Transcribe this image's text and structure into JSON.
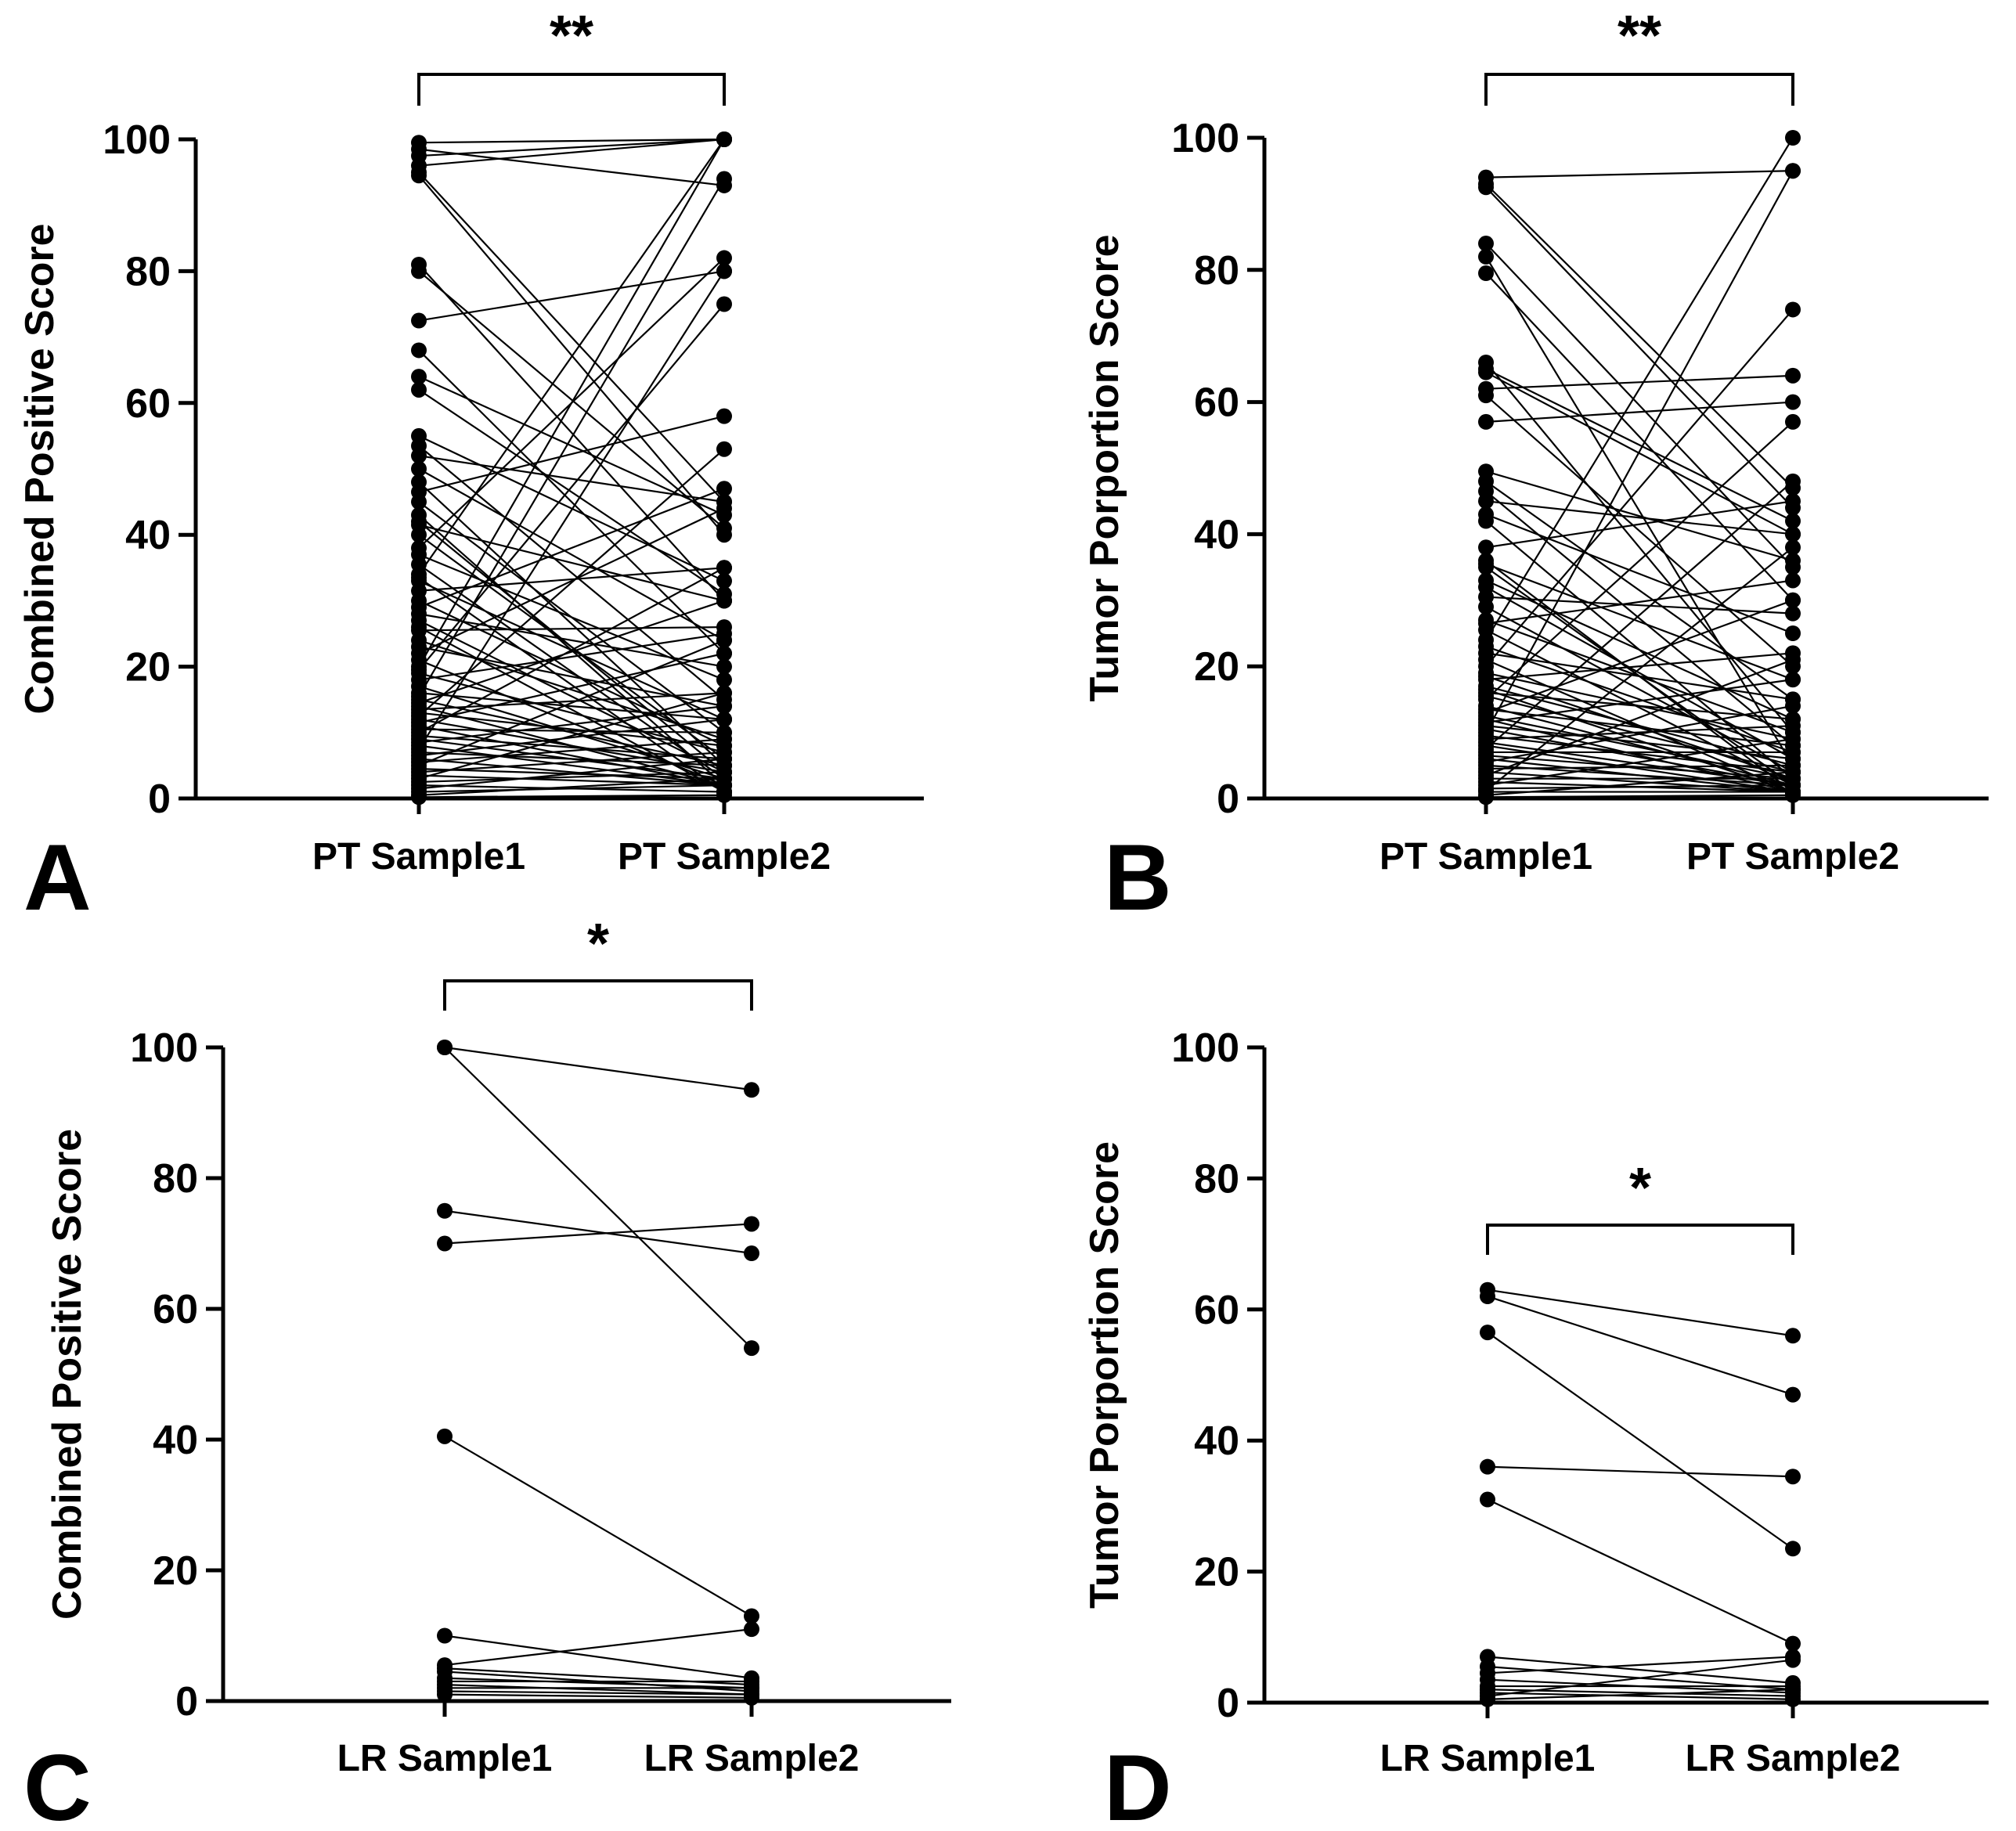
{
  "chart_data": [
    {
      "type": "line",
      "panel_label": "A",
      "ylabel": "Combined Positive Score",
      "categories": [
        "PT Sample1",
        "PT Sample2"
      ],
      "ylim": [
        0,
        100
      ],
      "yticks": [
        0,
        20,
        40,
        60,
        80,
        100
      ],
      "significance": "**",
      "pairs": [
        [
          99.5,
          100
        ],
        [
          98.5,
          93
        ],
        [
          97.5,
          100
        ],
        [
          96,
          100
        ],
        [
          95,
          45
        ],
        [
          94.5,
          40
        ],
        [
          81,
          30
        ],
        [
          80,
          41
        ],
        [
          72.5,
          80
        ],
        [
          68,
          22
        ],
        [
          64,
          43
        ],
        [
          62,
          31
        ],
        [
          55,
          33
        ],
        [
          53.5,
          15
        ],
        [
          52,
          45
        ],
        [
          50,
          24
        ],
        [
          48,
          5
        ],
        [
          46.5,
          58
        ],
        [
          45,
          10
        ],
        [
          43,
          2
        ],
        [
          41.5,
          30
        ],
        [
          40,
          6
        ],
        [
          38,
          82
        ],
        [
          37,
          18
        ],
        [
          35.5,
          3
        ],
        [
          34,
          100
        ],
        [
          33,
          12
        ],
        [
          31.5,
          35
        ],
        [
          30,
          8
        ],
        [
          29,
          47
        ],
        [
          28,
          20
        ],
        [
          27,
          4
        ],
        [
          25.5,
          26
        ],
        [
          24,
          9
        ],
        [
          23,
          14
        ],
        [
          22,
          44
        ],
        [
          21,
          2
        ],
        [
          20,
          100
        ],
        [
          19,
          7
        ],
        [
          18,
          25
        ],
        [
          17,
          3
        ],
        [
          16,
          12
        ],
        [
          15.5,
          94
        ],
        [
          15,
          5
        ],
        [
          14.5,
          30
        ],
        [
          14,
          2
        ],
        [
          13.5,
          16
        ],
        [
          13,
          8
        ],
        [
          12.5,
          53
        ],
        [
          12,
          4
        ],
        [
          11.5,
          22
        ],
        [
          11,
          2
        ],
        [
          10.5,
          10
        ],
        [
          10,
          35
        ],
        [
          9.5,
          6
        ],
        [
          9,
          3
        ],
        [
          8.5,
          14
        ],
        [
          8,
          2
        ],
        [
          7.5,
          80
        ],
        [
          7,
          5
        ],
        [
          6.5,
          12
        ],
        [
          6,
          2
        ],
        [
          5.5,
          9
        ],
        [
          5,
          24
        ],
        [
          4.5,
          3
        ],
        [
          4,
          7
        ],
        [
          3.5,
          2
        ],
        [
          3,
          16
        ],
        [
          2.5,
          4
        ],
        [
          2,
          1
        ],
        [
          1.5,
          6
        ],
        [
          1,
          2
        ],
        [
          0.5,
          3
        ],
        [
          0.2,
          0.5
        ],
        [
          19.5,
          75
        ],
        [
          26,
          1
        ],
        [
          33.5,
          1
        ],
        [
          42,
          4
        ]
      ]
    },
    {
      "type": "line",
      "panel_label": "B",
      "ylabel": "Tumor Porportion Score",
      "categories": [
        "PT Sample1",
        "PT Sample2"
      ],
      "ylim": [
        0,
        100
      ],
      "yticks": [
        0,
        20,
        40,
        60,
        80,
        100
      ],
      "significance": "**",
      "pairs": [
        [
          94,
          95
        ],
        [
          93,
          47
        ],
        [
          92.5,
          44
        ],
        [
          84,
          35
        ],
        [
          82,
          5
        ],
        [
          79.5,
          30
        ],
        [
          66,
          10
        ],
        [
          65,
          42
        ],
        [
          64.5,
          40
        ],
        [
          62,
          64
        ],
        [
          61,
          20
        ],
        [
          57,
          60
        ],
        [
          49.5,
          36
        ],
        [
          48,
          15
        ],
        [
          46.5,
          8
        ],
        [
          45,
          40
        ],
        [
          43,
          25
        ],
        [
          42,
          3
        ],
        [
          35.5,
          18
        ],
        [
          35,
          2
        ],
        [
          33,
          12
        ],
        [
          32,
          6
        ],
        [
          30.5,
          28
        ],
        [
          29,
          4
        ],
        [
          27,
          10
        ],
        [
          25.5,
          2
        ],
        [
          24,
          100
        ],
        [
          23,
          7
        ],
        [
          22,
          15
        ],
        [
          21,
          1
        ],
        [
          20,
          74
        ],
        [
          19,
          9
        ],
        [
          18.5,
          3
        ],
        [
          18,
          22
        ],
        [
          17,
          5
        ],
        [
          16.5,
          1
        ],
        [
          16,
          12
        ],
        [
          15.5,
          4
        ],
        [
          15,
          57
        ],
        [
          14,
          2
        ],
        [
          13.5,
          8
        ],
        [
          13,
          30
        ],
        [
          12.5,
          3
        ],
        [
          12,
          1
        ],
        [
          11.5,
          18
        ],
        [
          11,
          6
        ],
        [
          10.5,
          2
        ],
        [
          10,
          95
        ],
        [
          9.5,
          4
        ],
        [
          9,
          11
        ],
        [
          8.5,
          2
        ],
        [
          8,
          1
        ],
        [
          7.5,
          48
        ],
        [
          7,
          7
        ],
        [
          6.5,
          3
        ],
        [
          6,
          1
        ],
        [
          5.5,
          14
        ],
        [
          5,
          2
        ],
        [
          4.5,
          5
        ],
        [
          4,
          1
        ],
        [
          3.5,
          21
        ],
        [
          3,
          3
        ],
        [
          2.5,
          1
        ],
        [
          2,
          9
        ],
        [
          1.5,
          2
        ],
        [
          1,
          1
        ],
        [
          0.5,
          4
        ],
        [
          0.2,
          0.5
        ],
        [
          38,
          45
        ],
        [
          26.5,
          33
        ],
        [
          36,
          1
        ],
        [
          1.2,
          38
        ]
      ]
    },
    {
      "type": "line",
      "panel_label": "C",
      "ylabel": "Combined Positive Score",
      "categories": [
        "LR Sample1",
        "LR Sample2"
      ],
      "ylim": [
        0,
        100
      ],
      "yticks": [
        0,
        20,
        40,
        60,
        80,
        100
      ],
      "significance": "*",
      "pairs": [
        [
          100,
          93.5
        ],
        [
          100,
          54
        ],
        [
          75,
          68.5
        ],
        [
          70,
          73
        ],
        [
          40.5,
          13
        ],
        [
          10,
          3.5
        ],
        [
          5.5,
          11
        ],
        [
          5,
          2.5
        ],
        [
          4.5,
          1.5
        ],
        [
          3.5,
          2
        ],
        [
          3,
          3
        ],
        [
          2.5,
          1
        ],
        [
          2,
          2
        ],
        [
          1.5,
          1
        ],
        [
          1,
          0.5
        ]
      ]
    },
    {
      "type": "line",
      "panel_label": "D",
      "ylabel": "Tumor Porportion Score",
      "categories": [
        "LR Sample1",
        "LR Sample2"
      ],
      "ylim": [
        0,
        100
      ],
      "yticks": [
        0,
        20,
        40,
        60,
        80,
        100
      ],
      "significance": "*",
      "pairs": [
        [
          63,
          56
        ],
        [
          62,
          47
        ],
        [
          56.5,
          23.5
        ],
        [
          36,
          34.5
        ],
        [
          31,
          9
        ],
        [
          7,
          3
        ],
        [
          5.5,
          2
        ],
        [
          4.5,
          7
        ],
        [
          3.5,
          1.5
        ],
        [
          2.5,
          2.5
        ],
        [
          2,
          1
        ],
        [
          1.5,
          0.5
        ],
        [
          1,
          6.5
        ],
        [
          0.5,
          2
        ]
      ]
    }
  ]
}
